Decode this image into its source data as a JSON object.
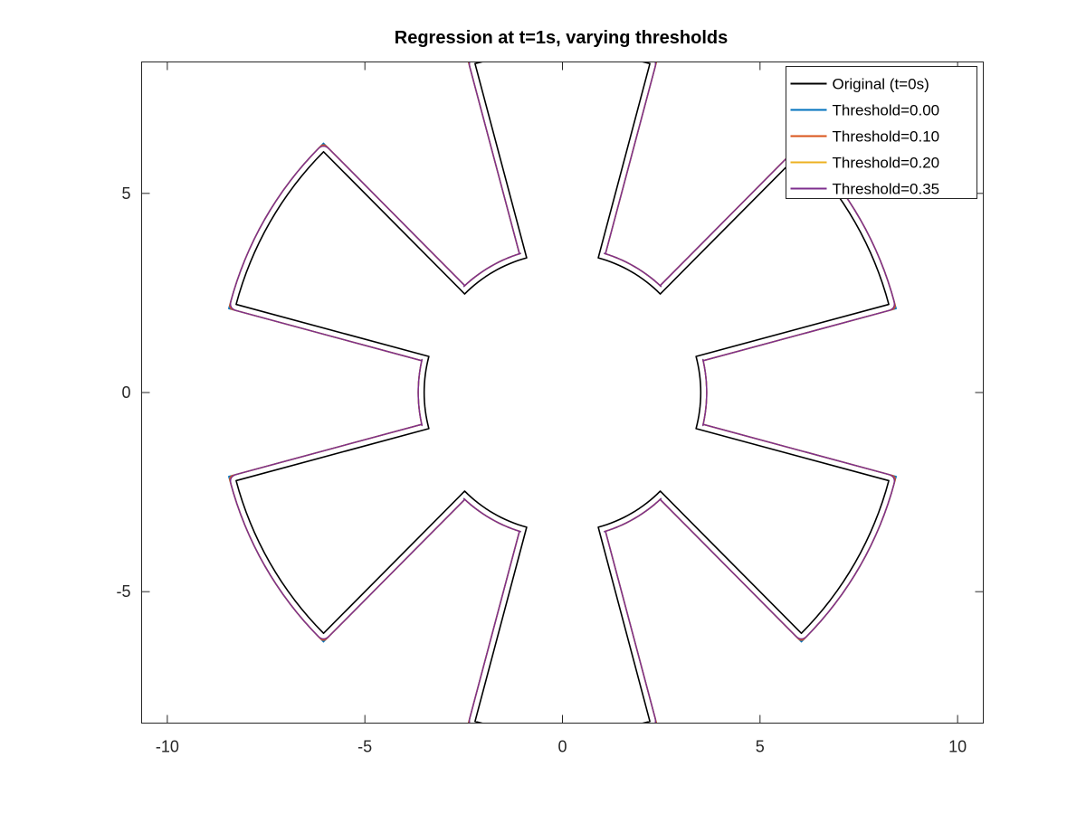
{
  "chart_data": {
    "type": "line",
    "title": "Regression at t=1s, varying thresholds",
    "xlabel": "",
    "ylabel": "",
    "xlim": [
      -10.65,
      10.65
    ],
    "ylim": [
      -8.3,
      8.3
    ],
    "aspect": "equal",
    "grid": false,
    "box": true,
    "legend_location": "top-right",
    "x_ticks": [
      -10,
      -5,
      0,
      5,
      10
    ],
    "x_tick_labels": [
      "-10",
      "-5",
      "0",
      "5",
      "10"
    ],
    "y_ticks": [
      -5,
      0,
      5
    ],
    "y_tick_labels": [
      "-5",
      "0",
      "5"
    ],
    "geometry": {
      "n_spokes": 6,
      "first_spoke_angle_deg": 90,
      "outer_radius": 8.55,
      "inner_radius": 3.5,
      "spoke_half_angle_inner_deg": 15.0,
      "spoke_half_angle_outer_deg": 15.0
    },
    "series": [
      {
        "name": "Original (t=0s)",
        "color": "#000000",
        "offset": 0.0,
        "fillet": 0.0
      },
      {
        "name": "Threshold=0.00",
        "color": "#0072bd",
        "offset": 0.15,
        "fillet": 0.0
      },
      {
        "name": "Threshold=0.10",
        "color": "#d95319",
        "offset": 0.15,
        "fillet": 0.12
      },
      {
        "name": "Threshold=0.20",
        "color": "#edb120",
        "offset": 0.15,
        "fillet": 0.2
      },
      {
        "name": "Threshold=0.35",
        "color": "#7e2f8e",
        "offset": 0.15,
        "fillet": 0.35
      }
    ]
  }
}
